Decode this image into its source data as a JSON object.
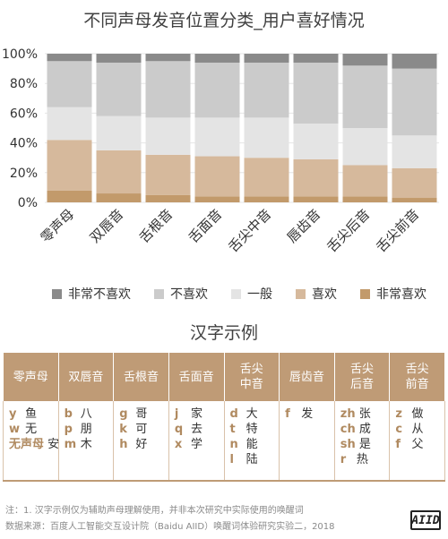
{
  "chart_data": {
    "type": "bar",
    "stacked": true,
    "title": "不同声母发音位置分类_用户喜好情况",
    "categories": [
      "零声母",
      "双唇音",
      "舌根音",
      "舌面音",
      "舌尖中音",
      "唇齿音",
      "舌尖后音",
      "舌尖前音"
    ],
    "y_ticks": [
      "0%",
      "20%",
      "40%",
      "60%",
      "80%",
      "100%"
    ],
    "ylim": [
      0,
      100
    ],
    "grid": true,
    "legend_position": "bottom",
    "series": [
      {
        "name": "非常喜欢",
        "color": "#c29a6b",
        "values": [
          8,
          6,
          5,
          4,
          4,
          4,
          4,
          3
        ]
      },
      {
        "name": "喜欢",
        "color": "#d6b99c",
        "values": [
          34,
          29,
          27,
          27,
          26,
          25,
          21,
          20
        ]
      },
      {
        "name": "一般",
        "color": "#e4e4e4",
        "values": [
          22,
          23,
          25,
          26,
          27,
          24,
          25,
          22
        ]
      },
      {
        "name": "不喜欢",
        "color": "#cbcbcb",
        "values": [
          31,
          36,
          38,
          37,
          37,
          41,
          42,
          45
        ]
      },
      {
        "name": "非常不喜欢",
        "color": "#8a8a8a",
        "values": [
          5,
          6,
          5,
          6,
          6,
          6,
          8,
          10
        ]
      }
    ]
  },
  "examples": {
    "title": "汉字示例",
    "columns": [
      {
        "header": [
          "零声母"
        ],
        "rows": [
          {
            "letter": "y",
            "chars": "鱼"
          },
          {
            "letter": "w",
            "chars": "无"
          },
          {
            "letter": "无声母",
            "chars": "安"
          }
        ]
      },
      {
        "header": [
          "双唇音"
        ],
        "rows": [
          {
            "letter": "b",
            "chars": "八"
          },
          {
            "letter": "p",
            "chars": "朋"
          },
          {
            "letter": "m",
            "chars": "木"
          }
        ]
      },
      {
        "header": [
          "舌根音"
        ],
        "rows": [
          {
            "letter": "g",
            "chars": "哥"
          },
          {
            "letter": "k",
            "chars": "可"
          },
          {
            "letter": "h",
            "chars": "好"
          }
        ]
      },
      {
        "header": [
          "舌面音"
        ],
        "rows": [
          {
            "letter": "j",
            "chars": "家"
          },
          {
            "letter": "q",
            "chars": "去"
          },
          {
            "letter": "x",
            "chars": "学"
          }
        ]
      },
      {
        "header": [
          "舌尖",
          "中音"
        ],
        "rows": [
          {
            "letter": "d",
            "chars": "大"
          },
          {
            "letter": "t",
            "chars": "特"
          },
          {
            "letter": "n",
            "chars": "能"
          },
          {
            "letter": "l",
            "chars": "陆"
          }
        ]
      },
      {
        "header": [
          "唇齿音"
        ],
        "rows": [
          {
            "letter": "f",
            "chars": "发"
          }
        ]
      },
      {
        "header": [
          "舌尖",
          "后音"
        ],
        "rows": [
          {
            "letter": "zh",
            "chars": "张"
          },
          {
            "letter": "ch",
            "chars": "成"
          },
          {
            "letter": "sh",
            "chars": "是"
          },
          {
            "letter": "r",
            "chars": "热"
          }
        ]
      },
      {
        "header": [
          "舌尖",
          "前音"
        ],
        "rows": [
          {
            "letter": "z",
            "chars": "做"
          },
          {
            "letter": "c",
            "chars": "从"
          },
          {
            "letter": "f",
            "chars": "父"
          }
        ]
      }
    ]
  },
  "notes": {
    "note1": "注：1. 汉字示例仅为辅助声母理解使用，并非本次研究中实际使用的唤醒词",
    "note2": "数据来源：百度人工智能交互设计院（Baidu AIID）唤醒词体验研究实验二，2018"
  },
  "logo_text": "AIID"
}
